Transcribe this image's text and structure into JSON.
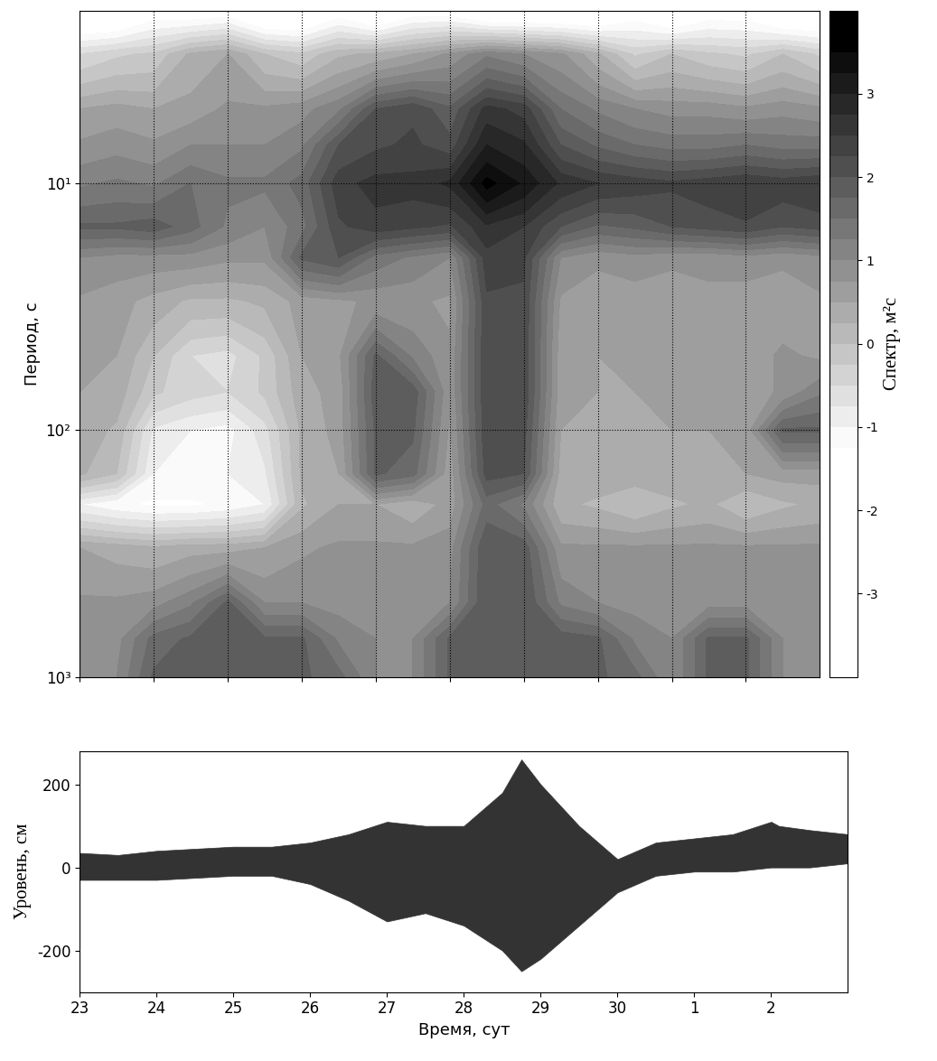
{
  "chart_data": [
    {
      "type": "heatmap",
      "y_label": "Период, с",
      "log": "y",
      "grid": true,
      "tick_labels": "y",
      "xlim": [
        23,
        33
      ],
      "xticks": [
        23,
        24,
        25,
        26,
        27,
        28,
        29,
        30,
        31,
        32
      ],
      "ylim": [
        1000,
        2
      ],
      "yticks": [
        {
          "value": 10,
          "label": "10¹"
        },
        {
          "value": 100,
          "label": "10²"
        },
        {
          "value": 1000,
          "label": "10³"
        }
      ],
      "x": [
        23,
        23.5,
        24,
        24.5,
        25,
        25.5,
        26,
        26.5,
        27,
        27.5,
        28,
        28.5,
        29,
        29.5,
        30,
        30.5,
        31,
        31.5,
        32,
        32.5,
        33
      ],
      "y": [
        2,
        3,
        5,
        7,
        10,
        15,
        20,
        30,
        50,
        70,
        100,
        150,
        200,
        300,
        500,
        700,
        1000
      ],
      "cells": [
        [
          -2,
          -2,
          -1.5,
          -1.6,
          -1.5,
          -2,
          -2,
          -1.5,
          -2,
          -1.5,
          -1.5,
          -2,
          -2,
          -2,
          -2,
          -1.5,
          -2,
          -1.5,
          -1.5,
          -2,
          -2
        ],
        [
          -0.5,
          -0.3,
          -0.2,
          0.3,
          0.5,
          0,
          -0.2,
          0.2,
          0.3,
          0.5,
          0.8,
          1.2,
          1.0,
          0.8,
          0.3,
          -0.3,
          0,
          -0.2,
          -0.3,
          0,
          -0.3
        ],
        [
          0.5,
          0.6,
          0.5,
          0.6,
          0.8,
          0.8,
          0.9,
          1.2,
          2.0,
          2.2,
          1.8,
          2.6,
          2.4,
          1.5,
          1.2,
          1.0,
          0.9,
          0.9,
          0.8,
          0.9,
          0.8
        ],
        [
          0.8,
          0.9,
          0.8,
          1.0,
          1.0,
          1.0,
          1.2,
          2.0,
          2.2,
          2.3,
          2.1,
          3.0,
          2.8,
          2.0,
          1.7,
          1.5,
          1.4,
          1.4,
          1.5,
          1.4,
          1.4
        ],
        [
          1.2,
          1.3,
          1.2,
          1.5,
          1.3,
          1.3,
          1.6,
          2.4,
          2.6,
          2.6,
          2.8,
          3.6,
          3.2,
          2.7,
          2.5,
          2.4,
          2.3,
          2.4,
          2.5,
          2.4,
          2.5
        ],
        [
          1.8,
          1.8,
          1.9,
          1.6,
          1.2,
          1.0,
          1.4,
          2.2,
          2.4,
          2.3,
          2.2,
          2.7,
          2.5,
          2.0,
          1.7,
          1.8,
          2.0,
          2.1,
          2.2,
          2.0,
          2.1
        ],
        [
          1.0,
          0.9,
          0.9,
          0.9,
          0.8,
          0.8,
          1.8,
          2.0,
          1.4,
          1.2,
          1.0,
          2.4,
          2.3,
          1.0,
          0.8,
          0.9,
          0.8,
          0.8,
          0.9,
          0.8,
          0.9
        ],
        [
          0.7,
          0.6,
          0.4,
          0.2,
          0.2,
          0.3,
          0.6,
          0.7,
          0.8,
          0.8,
          0.7,
          2.2,
          2.2,
          0.7,
          0.6,
          0.6,
          0.6,
          0.7,
          0.6,
          0.6,
          0.7
        ],
        [
          0.6,
          0.5,
          0,
          -0.5,
          -0.6,
          -0.2,
          0.5,
          0.7,
          1.8,
          1.2,
          0.8,
          2.2,
          2.2,
          0.6,
          0.5,
          0.6,
          0.5,
          0.6,
          0.6,
          0.8,
          0.7
        ],
        [
          0.5,
          0.4,
          -0.2,
          -0.4,
          -0.5,
          -0.2,
          0.4,
          0.6,
          1.9,
          1.9,
          0.8,
          2.2,
          2.2,
          0.6,
          0.5,
          0.5,
          0.6,
          0.6,
          0.6,
          0.8,
          1.2
        ],
        [
          0.4,
          0.2,
          -0.8,
          -1.0,
          -1.1,
          -0.6,
          0.3,
          0.6,
          1.8,
          1.8,
          0.7,
          2.2,
          2.1,
          0.5,
          0.5,
          0.5,
          0.5,
          0.5,
          0.6,
          1.8,
          1.8
        ],
        [
          0.3,
          0,
          -1.0,
          -1.0,
          -1.0,
          -0.8,
          0.3,
          0.5,
          1.8,
          1.6,
          0.6,
          2.1,
          2.0,
          0.4,
          0.4,
          0.4,
          0.4,
          0.5,
          0.5,
          0.6,
          0.6
        ],
        [
          -1.0,
          -1.2,
          -1.3,
          -1.3,
          -1.2,
          -1.0,
          0.2,
          0.5,
          0.5,
          0.3,
          0.6,
          1.6,
          1.2,
          0.3,
          0.2,
          0,
          0.2,
          0.3,
          0,
          0.2,
          0.3
        ],
        [
          0.5,
          0.4,
          0.3,
          0.4,
          0.4,
          0.5,
          0.7,
          0.8,
          0.8,
          0.8,
          0.9,
          2.0,
          1.9,
          0.8,
          0.8,
          0.8,
          0.8,
          0.8,
          0.8,
          0.8,
          0.8
        ],
        [
          0.8,
          0.8,
          0.9,
          1.2,
          1.8,
          1.0,
          1.0,
          0.9,
          0.9,
          0.9,
          1.0,
          2.0,
          2.0,
          1.2,
          1.0,
          0.9,
          0.9,
          0.9,
          0.9,
          0.9,
          0.9
        ],
        [
          0.9,
          0.9,
          1.6,
          1.8,
          1.9,
          1.8,
          1.8,
          1.2,
          1.0,
          1.0,
          1.8,
          2.0,
          2.0,
          1.9,
          1.8,
          1.2,
          1.0,
          1.8,
          1.8,
          1.0,
          0.9
        ],
        [
          1.0,
          1.0,
          1.8,
          1.9,
          1.9,
          1.8,
          1.8,
          1.6,
          1.0,
          1.0,
          1.8,
          2.0,
          2.0,
          1.9,
          1.8,
          1.6,
          1.0,
          1.8,
          1.8,
          1.0,
          1.0
        ]
      ],
      "colorbar": {
        "label": "Спектр, м²с",
        "range": [
          -4,
          4
        ],
        "ticks": [
          -3,
          -2,
          -1,
          0,
          1,
          2,
          3
        ],
        "levels": [
          -4,
          -3.75,
          -3.5,
          -3.25,
          -3,
          -2.75,
          -2.5,
          -2.25,
          -2,
          -1.75,
          -1.5,
          -1.25,
          -1,
          -0.75,
          -0.5,
          -0.25,
          0,
          0.25,
          0.5,
          0.75,
          1,
          1.25,
          1.5,
          1.75,
          2,
          2.25,
          2.5,
          2.75,
          3,
          3.25,
          3.5,
          3.75,
          4
        ]
      }
    },
    {
      "type": "area",
      "y_label": "Уровень, см",
      "x_label": "Время, сут",
      "color": "#333333",
      "xlim": [
        23,
        33
      ],
      "xticks": [
        23,
        24,
        25,
        26,
        27,
        28,
        29,
        30,
        {
          "value": 31,
          "label": "1"
        },
        {
          "value": 32,
          "label": "2"
        }
      ],
      "ylim": [
        -300,
        280
      ],
      "yticks": [
        -200,
        0,
        200
      ],
      "x": [
        23,
        23.5,
        24,
        24.5,
        25,
        25.5,
        26,
        26.5,
        27,
        27.5,
        28,
        28.5,
        28.75,
        29,
        29.5,
        30,
        30.5,
        31,
        31.5,
        32,
        32.1,
        32.5,
        33
      ],
      "upper": [
        35,
        30,
        40,
        45,
        50,
        50,
        60,
        80,
        110,
        100,
        100,
        180,
        260,
        200,
        100,
        20,
        60,
        70,
        80,
        110,
        100,
        90,
        80
      ],
      "lower": [
        -30,
        -30,
        -30,
        -25,
        -20,
        -20,
        -40,
        -80,
        -130,
        -110,
        -140,
        -200,
        -250,
        -220,
        -140,
        -60,
        -20,
        -10,
        -10,
        0,
        0,
        0,
        10
      ]
    }
  ]
}
